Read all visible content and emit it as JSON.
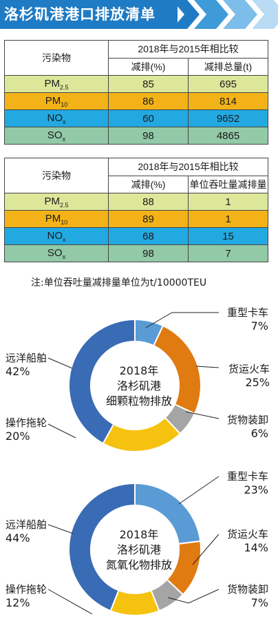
{
  "title": "洛杉矶港港口排放清单",
  "table1": {
    "header_pollutant": "污染物",
    "header_group": "2018年与2015年相比较",
    "header_col1": "减排(%)",
    "header_col2": "减排总量(t)",
    "rows": [
      {
        "pollutant": "PM2.5",
        "base": "PM",
        "sub": "2.5",
        "col1": "85",
        "col2": "695"
      },
      {
        "pollutant": "PM10",
        "base": "PM",
        "sub": "10",
        "col1": "86",
        "col2": "814"
      },
      {
        "pollutant": "NOx",
        "base": "NO",
        "sub": "x",
        "col1": "60",
        "col2": "9652"
      },
      {
        "pollutant": "SOx",
        "base": "SO",
        "sub": "x",
        "col1": "98",
        "col2": "4865"
      }
    ]
  },
  "table2": {
    "header_pollutant": "污染物",
    "header_group": "2018年与2015年相比较",
    "header_col1": "减排(%)",
    "header_col2": "单位吞吐量减排量",
    "rows": [
      {
        "pollutant": "PM2.5",
        "base": "PM",
        "sub": "2.5",
        "col1": "88",
        "col2": "1"
      },
      {
        "pollutant": "PM10",
        "base": "PM",
        "sub": "10",
        "col1": "89",
        "col2": "1"
      },
      {
        "pollutant": "NOx",
        "base": "NO",
        "sub": "x",
        "col1": "68",
        "col2": "15"
      },
      {
        "pollutant": "SOx",
        "base": "SO",
        "sub": "x",
        "col1": "98",
        "col2": "7"
      }
    ]
  },
  "note": "注:单位吞吐量减排量单位为t/10000TEU",
  "colors": {
    "banner": "#1f7bc4",
    "pm25": "#dde79a",
    "pm10": "#f3b318",
    "nox": "#23a9e1",
    "sox": "#92c9a7"
  },
  "chart_data": [
    {
      "type": "pie",
      "title": "2018年 洛杉矶港 细颗粒物排放",
      "title_lines": [
        "2018年",
        "洛杉矶港",
        "细颗粒物排放"
      ],
      "categories": [
        "重型卡车",
        "货运火车",
        "货物装卸",
        "操作拖轮",
        "远洋船舶"
      ],
      "values": [
        7,
        25,
        6,
        20,
        42
      ],
      "labels": [
        "7%",
        "25%",
        "6%",
        "20%",
        "42%"
      ],
      "colors": [
        "#5b9bd5",
        "#e07b12",
        "#a5a5a5",
        "#f5c20f",
        "#3a6bb5"
      ]
    },
    {
      "type": "pie",
      "title": "2018年 洛杉矶港 氮氧化物排放",
      "title_lines": [
        "2018年",
        "洛杉矶港",
        "氮氧化物排放"
      ],
      "categories": [
        "重型卡车",
        "货运火车",
        "货物装卸",
        "操作拖轮",
        "远洋船舶"
      ],
      "values": [
        23,
        14,
        7,
        12,
        44
      ],
      "labels": [
        "23%",
        "14%",
        "7%",
        "12%",
        "44%"
      ],
      "colors": [
        "#5b9bd5",
        "#e07b12",
        "#a5a5a5",
        "#f5c20f",
        "#3a6bb5"
      ]
    }
  ]
}
